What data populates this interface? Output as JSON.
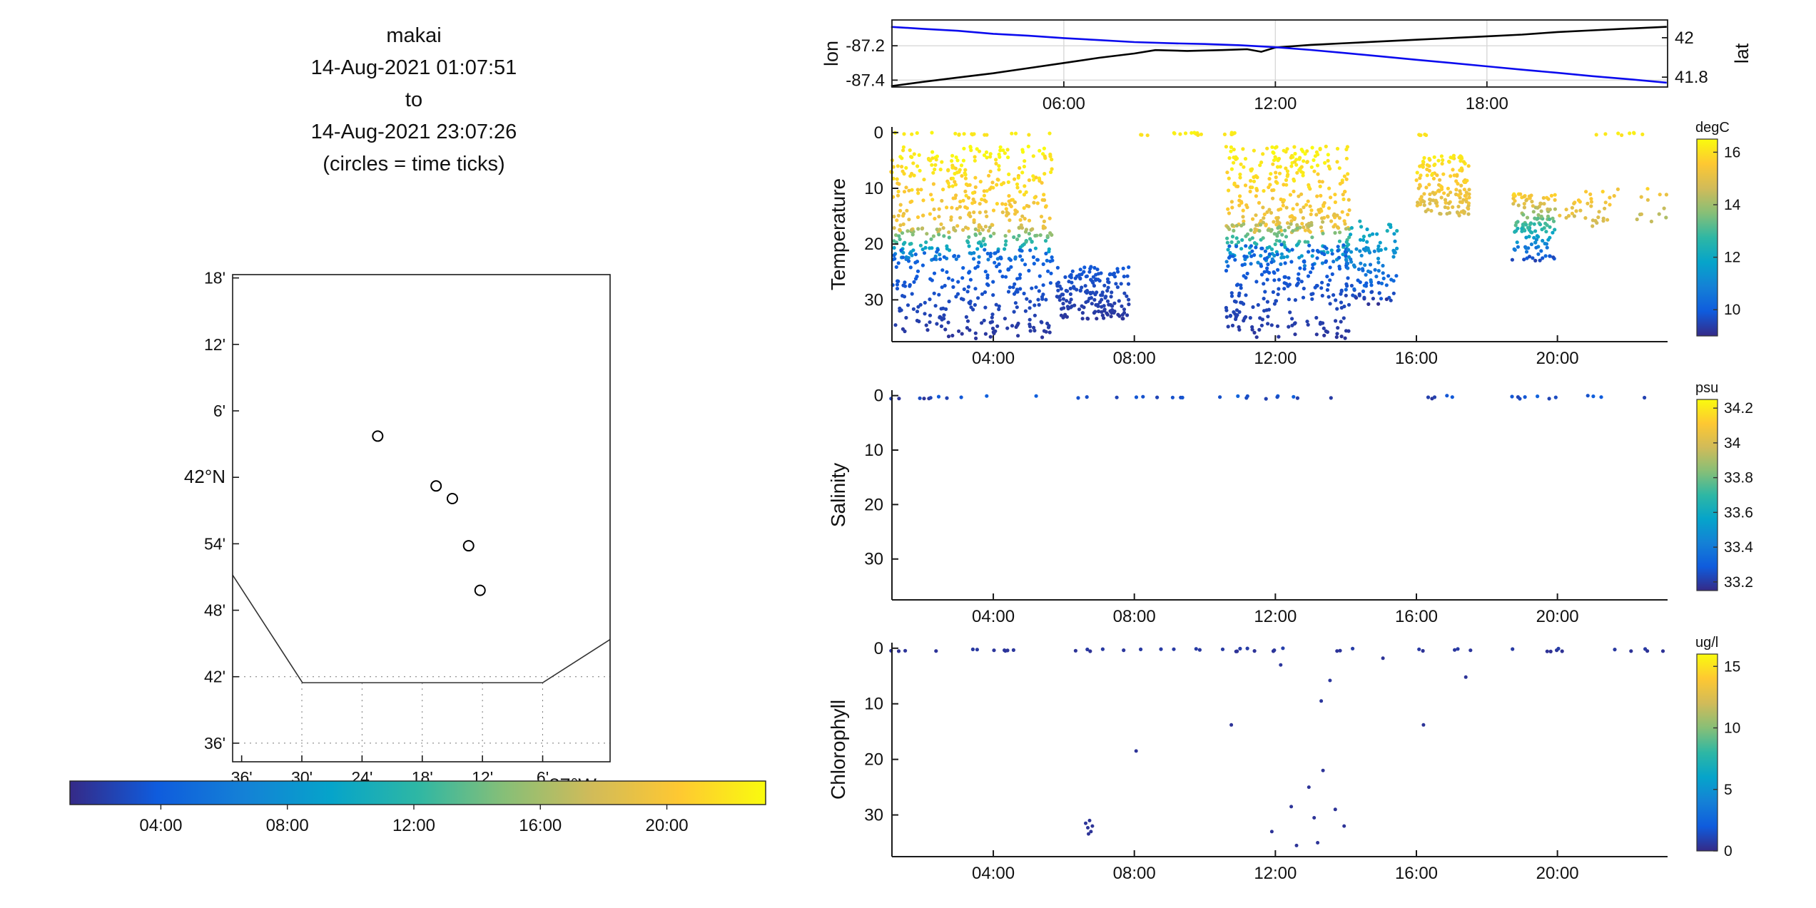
{
  "title_block": {
    "vehicle": "makai",
    "start": "14-Aug-2021 01:07:51",
    "joiner": "to",
    "end": "14-Aug-2021 23:07:26",
    "note": "(circles = time ticks)"
  },
  "colors": {
    "parula": [
      "#352a87",
      "#0f5cdd",
      "#1481d6",
      "#06a4ca",
      "#2eb7a4",
      "#87bf77",
      "#d1bb59",
      "#fec832",
      "#f9fb0e"
    ],
    "lon_line": "#000000",
    "lat_line": "#0b0bee",
    "axis": "#1a1a1a",
    "grid": "#d8d8d8",
    "marker_dark": "#352a87"
  },
  "chart_data": [
    {
      "id": "map",
      "type": "scatter",
      "xlabel": "87°W",
      "x_tick_labels": [
        "36'",
        "30'",
        "24'",
        "18'",
        "12'",
        "6'"
      ],
      "x_tick_values": [
        -87.6,
        -87.5,
        -87.4,
        -87.3,
        -87.2,
        -87.1
      ],
      "y_tick_labels": [
        "18'",
        "12'",
        "6'",
        "42°N",
        "54'",
        "48'",
        "42'",
        "36'"
      ],
      "y_tick_values": [
        42.3,
        42.2,
        42.1,
        42.0,
        41.9,
        41.8,
        41.7,
        41.6
      ],
      "xlim": [
        -87.615,
        -86.988
      ],
      "ylim": [
        41.572,
        42.305
      ],
      "dotted_h_lines": [
        41.7,
        41.6
      ],
      "dotted_v_lines": [
        -87.5,
        -87.4,
        -87.3,
        -87.2,
        -87.1
      ],
      "dotted_v_from_lat": 41.691,
      "coastline": [
        [
          -87.615,
          41.853
        ],
        [
          -87.499,
          41.691
        ],
        [
          -87.1,
          41.691
        ],
        [
          -86.988,
          41.756
        ]
      ],
      "track_circles": [
        [
          -87.374,
          42.062
        ],
        [
          -87.277,
          41.987
        ],
        [
          -87.25,
          41.968
        ],
        [
          -87.223,
          41.897
        ],
        [
          -87.204,
          41.83
        ]
      ],
      "colorbar": {
        "tick_labels": [
          "04:00",
          "08:00",
          "12:00",
          "16:00",
          "20:00"
        ],
        "tick_values": [
          4,
          8,
          12,
          16,
          20
        ],
        "range": [
          1.125,
          23.124
        ]
      }
    },
    {
      "id": "lonlat",
      "type": "line",
      "ylabel_left": "lon",
      "ylabel_right": "lat",
      "x_tick_labels": [
        "06:00",
        "12:00",
        "18:00"
      ],
      "x_tick_values": [
        6,
        12,
        18
      ],
      "xlim": [
        1.125,
        23.124
      ],
      "ylim_left": [
        -87.44,
        -87.05
      ],
      "left_tick_labels": [
        "-87.2",
        "-87.4"
      ],
      "left_tick_values": [
        -87.2,
        -87.4
      ],
      "ylim_right": [
        41.75,
        42.09
      ],
      "right_tick_labels": [
        "42",
        "41.8"
      ],
      "right_tick_values": [
        42,
        41.8
      ],
      "lon_series": [
        [
          1.1,
          -87.435
        ],
        [
          2,
          -87.41
        ],
        [
          3,
          -87.385
        ],
        [
          4,
          -87.36
        ],
        [
          5,
          -87.33
        ],
        [
          6,
          -87.3
        ],
        [
          7,
          -87.27
        ],
        [
          8,
          -87.245
        ],
        [
          8.6,
          -87.225
        ],
        [
          9.5,
          -87.23
        ],
        [
          10.5,
          -87.225
        ],
        [
          11.2,
          -87.22
        ],
        [
          11.6,
          -87.235
        ],
        [
          12.0,
          -87.21
        ],
        [
          13,
          -87.195
        ],
        [
          14,
          -87.185
        ],
        [
          15,
          -87.175
        ],
        [
          16,
          -87.165
        ],
        [
          17,
          -87.155
        ],
        [
          18,
          -87.145
        ],
        [
          19,
          -87.135
        ],
        [
          20,
          -87.12
        ],
        [
          21,
          -87.11
        ],
        [
          22,
          -87.1
        ],
        [
          23.1,
          -87.09
        ]
      ],
      "lat_series": [
        [
          1.1,
          42.055
        ],
        [
          2,
          42.045
        ],
        [
          3,
          42.035
        ],
        [
          4,
          42.02
        ],
        [
          5,
          42.01
        ],
        [
          6,
          41.998
        ],
        [
          7,
          41.988
        ],
        [
          8,
          41.978
        ],
        [
          9,
          41.972
        ],
        [
          10,
          41.968
        ],
        [
          11,
          41.962
        ],
        [
          12,
          41.952
        ],
        [
          13,
          41.938
        ],
        [
          14,
          41.922
        ],
        [
          15,
          41.905
        ],
        [
          16,
          41.888
        ],
        [
          17,
          41.872
        ],
        [
          18,
          41.855
        ],
        [
          19,
          41.838
        ],
        [
          20,
          41.822
        ],
        [
          21,
          41.805
        ],
        [
          22,
          41.79
        ],
        [
          23.1,
          41.772
        ]
      ]
    },
    {
      "id": "temperature",
      "type": "scatter",
      "ylabel": "Temperature",
      "x_tick_labels": [
        "04:00",
        "08:00",
        "12:00",
        "16:00",
        "20:00"
      ],
      "x_tick_values": [
        4,
        8,
        12,
        16,
        20
      ],
      "xlim": [
        1.125,
        23.124
      ],
      "y_tick_values": [
        0,
        10,
        20,
        30
      ],
      "ylim": [
        -1,
        37.5
      ],
      "colorbar": {
        "label": "degC",
        "tick_labels": [
          "16",
          "14",
          "12",
          "10"
        ],
        "tick_values": [
          16,
          14,
          12,
          10
        ],
        "vmin": 9,
        "vmax": 16.5
      },
      "clusters": [
        {
          "t": [
            1.1,
            5.7
          ],
          "d": [
            0,
            0.5
          ],
          "v": [
            16.4,
            16.0
          ],
          "n": 18
        },
        {
          "t": [
            1.1,
            5.7
          ],
          "d": [
            2.5,
            18
          ],
          "v": [
            16.4,
            15.0
          ],
          "n": 290
        },
        {
          "t": [
            1.1,
            5.7
          ],
          "d": [
            17,
            23
          ],
          "v": [
            14.5,
            10.5
          ],
          "n": 130
        },
        {
          "t": [
            1.1,
            5.7
          ],
          "d": [
            21,
            37
          ],
          "v": [
            10.2,
            9.2
          ],
          "n": 240
        },
        {
          "t": [
            5.8,
            7.85
          ],
          "d": [
            24,
            33.5
          ],
          "v": [
            9.9,
            9.2
          ],
          "n": 170
        },
        {
          "t": [
            7.9,
            9.9
          ],
          "d": [
            0,
            0.5
          ],
          "v": [
            16.4,
            16.0
          ],
          "n": 14
        },
        {
          "t": [
            10.4,
            10.9
          ],
          "d": [
            0,
            0.5
          ],
          "v": [
            16.3,
            16.0
          ],
          "n": 6
        },
        {
          "t": [
            10.6,
            14.1
          ],
          "d": [
            2.5,
            18
          ],
          "v": [
            16.4,
            15.0
          ],
          "n": 270
        },
        {
          "t": [
            10.6,
            14.1
          ],
          "d": [
            16,
            24
          ],
          "v": [
            14.5,
            10.5
          ],
          "n": 130
        },
        {
          "t": [
            10.6,
            14.1
          ],
          "d": [
            20,
            37
          ],
          "v": [
            10.2,
            9.2
          ],
          "n": 220
        },
        {
          "t": [
            14.0,
            15.45
          ],
          "d": [
            15,
            31
          ],
          "v": [
            12.5,
            9.3
          ],
          "n": 110
        },
        {
          "t": [
            16.0,
            17.5
          ],
          "d": [
            4,
            15
          ],
          "v": [
            16.2,
            14.8
          ],
          "n": 150
        },
        {
          "t": [
            16.0,
            16.4
          ],
          "d": [
            0,
            0.5
          ],
          "v": [
            16.3,
            16.0
          ],
          "n": 5
        },
        {
          "t": [
            18.7,
            19.95
          ],
          "d": [
            11,
            23
          ],
          "v": [
            15.8,
            9.5
          ],
          "n": 130
        },
        {
          "t": [
            20.05,
            21.5
          ],
          "d": [
            10,
            17
          ],
          "v": [
            15.8,
            14.5
          ],
          "n": 34
        },
        {
          "t": [
            21.6,
            23.2
          ],
          "d": [
            10,
            16
          ],
          "v": [
            15.6,
            14.3
          ],
          "n": 14
        },
        {
          "t": [
            21.0,
            23.2
          ],
          "d": [
            0,
            0.5
          ],
          "v": [
            16.4,
            16.0
          ],
          "n": 8
        }
      ]
    },
    {
      "id": "salinity",
      "type": "scatter",
      "ylabel": "Salinity",
      "x_tick_labels": [
        "04:00",
        "08:00",
        "12:00",
        "16:00",
        "20:00"
      ],
      "x_tick_values": [
        4,
        8,
        12,
        16,
        20
      ],
      "xlim": [
        1.125,
        23.124
      ],
      "y_tick_values": [
        0,
        10,
        20,
        30
      ],
      "ylim": [
        -1,
        37.5
      ],
      "colorbar": {
        "label": "psu",
        "tick_labels": [
          "34.2",
          "34",
          "33.8",
          "33.6",
          "33.4",
          "33.2"
        ],
        "tick_values": [
          34.2,
          34,
          33.8,
          33.6,
          33.4,
          33.2
        ],
        "vmin": 33.15,
        "vmax": 34.25
      },
      "clusters": [
        {
          "t": [
            1.1,
            5.7
          ],
          "d": [
            0,
            0.6
          ],
          "v": [
            33.3,
            33.2
          ],
          "n": 11
        },
        {
          "t": [
            6.3,
            9.9
          ],
          "d": [
            0,
            0.6
          ],
          "v": [
            33.3,
            33.2
          ],
          "n": 9
        },
        {
          "t": [
            10.4,
            14.3
          ],
          "d": [
            0,
            0.6
          ],
          "v": [
            33.3,
            33.2
          ],
          "n": 10
        },
        {
          "t": [
            15.9,
            17.6
          ],
          "d": [
            0,
            0.6
          ],
          "v": [
            33.3,
            33.2
          ],
          "n": 5
        },
        {
          "t": [
            18.6,
            23.2
          ],
          "d": [
            0,
            0.6
          ],
          "v": [
            33.3,
            33.2
          ],
          "n": 11
        }
      ]
    },
    {
      "id": "chlorophyll",
      "type": "scatter",
      "ylabel": "Chlorophyll",
      "x_tick_labels": [
        "04:00",
        "08:00",
        "12:00",
        "16:00",
        "20:00"
      ],
      "x_tick_values": [
        4,
        8,
        12,
        16,
        20
      ],
      "xlim": [
        1.125,
        23.124
      ],
      "y_tick_values": [
        0,
        10,
        20,
        30
      ],
      "ylim": [
        -1,
        37.5
      ],
      "colorbar": {
        "label": "ug/l",
        "tick_labels": [
          "15",
          "10",
          "5",
          "0"
        ],
        "tick_values": [
          15,
          10,
          5,
          0
        ],
        "vmin": 0,
        "vmax": 16
      },
      "clusters": [
        {
          "t": [
            1.1,
            5.7
          ],
          "d": [
            0,
            0.6
          ],
          "v": [
            0.8,
            0.3
          ],
          "n": 11
        },
        {
          "t": [
            6.3,
            9.9
          ],
          "d": [
            0,
            0.6
          ],
          "v": [
            0.8,
            0.3
          ],
          "n": 10
        },
        {
          "t": [
            10.4,
            14.3
          ],
          "d": [
            0,
            0.6
          ],
          "v": [
            0.8,
            0.3
          ],
          "n": 12
        },
        {
          "t": [
            15.9,
            17.6
          ],
          "d": [
            0,
            0.6
          ],
          "v": [
            0.8,
            0.3
          ],
          "n": 5
        },
        {
          "t": [
            18.6,
            23.2
          ],
          "d": [
            0,
            0.6
          ],
          "v": [
            0.8,
            0.3
          ],
          "n": 11
        }
      ],
      "points": [
        [
          6.62,
          31.5,
          0.4
        ],
        [
          6.68,
          32.3,
          0.4
        ],
        [
          6.73,
          31.0,
          0.4
        ],
        [
          6.77,
          33.0,
          0.4
        ],
        [
          6.81,
          32.0,
          0.4
        ],
        [
          6.7,
          33.4,
          0.4
        ],
        [
          8.05,
          18.5,
          0.4
        ],
        [
          10.75,
          13.8,
          0.4
        ],
        [
          11.9,
          33.0,
          0.4
        ],
        [
          12.15,
          3.0,
          0.5
        ],
        [
          12.45,
          28.5,
          0.4
        ],
        [
          12.6,
          35.5,
          0.4
        ],
        [
          12.95,
          25.0,
          0.4
        ],
        [
          13.1,
          30.5,
          0.4
        ],
        [
          13.2,
          35.0,
          0.4
        ],
        [
          13.3,
          9.5,
          0.5
        ],
        [
          13.35,
          22.0,
          0.4
        ],
        [
          13.55,
          5.8,
          0.5
        ],
        [
          13.7,
          29.0,
          0.4
        ],
        [
          13.95,
          32.0,
          0.4
        ],
        [
          15.05,
          1.8,
          0.4
        ],
        [
          16.2,
          13.8,
          0.4
        ],
        [
          17.4,
          5.2,
          0.4
        ]
      ]
    }
  ]
}
